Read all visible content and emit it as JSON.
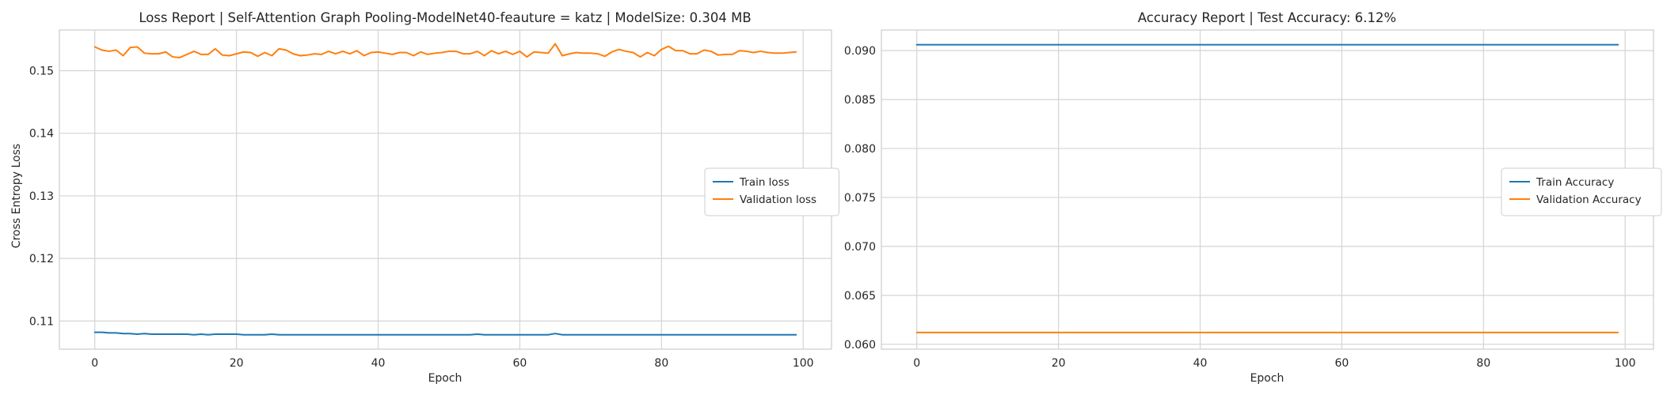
{
  "chart_data": [
    {
      "type": "line",
      "title": "Loss Report | Self-Attention Graph Pooling-ModelNet40-feauture = katz | ModelSize: 0.304 MB",
      "xlabel": "Epoch",
      "ylabel": "Cross Entropy Loss",
      "xlim": [
        -5,
        104
      ],
      "ylim": [
        0.1055,
        0.1565
      ],
      "xticks": [
        0,
        20,
        40,
        60,
        80,
        100
      ],
      "yticks": [
        0.11,
        0.12,
        0.13,
        0.14,
        0.15
      ],
      "ytick_labels": [
        "0.11",
        "0.12",
        "0.13",
        "0.14",
        "0.15"
      ],
      "grid": true,
      "legend_position": "center-right",
      "series": [
        {
          "name": "Train loss",
          "color": "#1f77b4",
          "x": [
            0,
            1,
            2,
            3,
            4,
            5,
            6,
            7,
            8,
            9,
            10,
            11,
            12,
            13,
            14,
            15,
            16,
            17,
            18,
            19,
            20,
            21,
            22,
            23,
            24,
            25,
            26,
            27,
            28,
            29,
            30,
            31,
            32,
            33,
            34,
            35,
            36,
            37,
            38,
            39,
            40,
            41,
            42,
            43,
            44,
            45,
            46,
            47,
            48,
            49,
            50,
            51,
            52,
            53,
            54,
            55,
            56,
            57,
            58,
            59,
            60,
            61,
            62,
            63,
            64,
            65,
            66,
            67,
            68,
            69,
            70,
            71,
            72,
            73,
            74,
            75,
            76,
            77,
            78,
            79,
            80,
            81,
            82,
            83,
            84,
            85,
            86,
            87,
            88,
            89,
            90,
            91,
            92,
            93,
            94,
            95,
            96,
            97,
            98,
            99
          ],
          "values": [
            0.1082,
            0.1082,
            0.1081,
            0.1081,
            0.108,
            0.108,
            0.1079,
            0.108,
            0.1079,
            0.1079,
            0.1079,
            0.1079,
            0.1079,
            0.1079,
            0.1078,
            0.1079,
            0.1078,
            0.1079,
            0.1079,
            0.1079,
            0.1079,
            0.1078,
            0.1078,
            0.1078,
            0.1078,
            0.1079,
            0.1078,
            0.1078,
            0.1078,
            0.1078,
            0.1078,
            0.1078,
            0.1078,
            0.1078,
            0.1078,
            0.1078,
            0.1078,
            0.1078,
            0.1078,
            0.1078,
            0.1078,
            0.1078,
            0.1078,
            0.1078,
            0.1078,
            0.1078,
            0.1078,
            0.1078,
            0.1078,
            0.1078,
            0.1078,
            0.1078,
            0.1078,
            0.1078,
            0.1079,
            0.1078,
            0.1078,
            0.1078,
            0.1078,
            0.1078,
            0.1078,
            0.1078,
            0.1078,
            0.1078,
            0.1078,
            0.108,
            0.1078,
            0.1078,
            0.1078,
            0.1078,
            0.1078,
            0.1078,
            0.1078,
            0.1078,
            0.1078,
            0.1078,
            0.1078,
            0.1078,
            0.1078,
            0.1078,
            0.1078,
            0.1078,
            0.1078,
            0.1078,
            0.1078,
            0.1078,
            0.1078,
            0.1078,
            0.1078,
            0.1078,
            0.1078,
            0.1078,
            0.1078,
            0.1078,
            0.1078,
            0.1078,
            0.1078,
            0.1078,
            0.1078,
            0.1078
          ]
        },
        {
          "name": "Validation loss",
          "color": "#ff7f0e",
          "x": [
            0,
            1,
            2,
            3,
            4,
            5,
            6,
            7,
            8,
            9,
            10,
            11,
            12,
            13,
            14,
            15,
            16,
            17,
            18,
            19,
            20,
            21,
            22,
            23,
            24,
            25,
            26,
            27,
            28,
            29,
            30,
            31,
            32,
            33,
            34,
            35,
            36,
            37,
            38,
            39,
            40,
            41,
            42,
            43,
            44,
            45,
            46,
            47,
            48,
            49,
            50,
            51,
            52,
            53,
            54,
            55,
            56,
            57,
            58,
            59,
            60,
            61,
            62,
            63,
            64,
            65,
            66,
            67,
            68,
            69,
            70,
            71,
            72,
            73,
            74,
            75,
            76,
            77,
            78,
            79,
            80,
            81,
            82,
            83,
            84,
            85,
            86,
            87,
            88,
            89,
            90,
            91,
            92,
            93,
            94,
            95,
            96,
            97,
            98,
            99
          ],
          "values": [
            0.1538,
            0.1533,
            0.1531,
            0.1533,
            0.1524,
            0.1537,
            0.1538,
            0.1528,
            0.1527,
            0.1527,
            0.153,
            0.1522,
            0.1521,
            0.1526,
            0.1531,
            0.1526,
            0.1526,
            0.1535,
            0.1525,
            0.1524,
            0.1527,
            0.153,
            0.1529,
            0.1523,
            0.1529,
            0.1524,
            0.1535,
            0.1533,
            0.1527,
            0.1524,
            0.1525,
            0.1527,
            0.1526,
            0.1531,
            0.1527,
            0.1531,
            0.1527,
            0.1532,
            0.1524,
            0.1529,
            0.153,
            0.1528,
            0.1526,
            0.1529,
            0.1529,
            0.1524,
            0.153,
            0.1526,
            0.1528,
            0.1529,
            0.1531,
            0.1531,
            0.1527,
            0.1527,
            0.1531,
            0.1524,
            0.1532,
            0.1527,
            0.1531,
            0.1526,
            0.1531,
            0.1522,
            0.153,
            0.1529,
            0.1528,
            0.1543,
            0.1524,
            0.1527,
            0.1529,
            0.1528,
            0.1528,
            0.1527,
            0.1523,
            0.153,
            0.1534,
            0.1531,
            0.1529,
            0.1522,
            0.1529,
            0.1524,
            0.1534,
            0.1539,
            0.1532,
            0.1532,
            0.1527,
            0.1527,
            0.1533,
            0.1531,
            0.1525,
            0.1526,
            0.1526,
            0.1532,
            0.1531,
            0.1529,
            0.1531,
            0.1529,
            0.1528,
            0.1528,
            0.1529,
            0.153
          ]
        }
      ]
    },
    {
      "type": "line",
      "title": "Accuracy Report | Test Accuracy: 6.12%",
      "xlabel": "Epoch",
      "ylabel": "",
      "xlim": [
        -5,
        104
      ],
      "ylim": [
        0.0595,
        0.0921
      ],
      "xticks": [
        0,
        20,
        40,
        60,
        80,
        100
      ],
      "yticks": [
        0.06,
        0.065,
        0.07,
        0.075,
        0.08,
        0.085,
        0.09
      ],
      "ytick_labels": [
        "0.060",
        "0.065",
        "0.070",
        "0.075",
        "0.080",
        "0.085",
        "0.090"
      ],
      "grid": true,
      "legend_position": "center-right",
      "series": [
        {
          "name": "Train Accuracy",
          "color": "#1f77b4",
          "x": [
            0,
            99
          ],
          "values": [
            0.0906,
            0.0906
          ]
        },
        {
          "name": "Validation Accuracy",
          "color": "#ff7f0e",
          "x": [
            0,
            99
          ],
          "values": [
            0.0612,
            0.0612
          ]
        }
      ]
    }
  ]
}
